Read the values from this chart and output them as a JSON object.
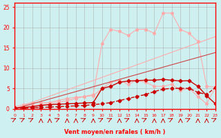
{
  "x": [
    0,
    1,
    2,
    3,
    4,
    5,
    6,
    7,
    8,
    9,
    10,
    11,
    12,
    13,
    14,
    15,
    16,
    17,
    18,
    19,
    20,
    21,
    22,
    23
  ],
  "line1": [
    0.2,
    0.3,
    0.5,
    0.8,
    1.0,
    1.1,
    1.2,
    1.3,
    1.4,
    1.5,
    5.0,
    5.5,
    6.5,
    6.8,
    6.9,
    7.0,
    7.0,
    7.2,
    7.0,
    6.8,
    6.9,
    5.5,
    3.2,
    1.2
  ],
  "line2": [
    0.1,
    0.1,
    0.2,
    0.3,
    0.4,
    0.5,
    0.6,
    0.7,
    0.8,
    1.0,
    1.2,
    1.5,
    2.0,
    2.5,
    3.0,
    3.5,
    4.2,
    4.8,
    5.0,
    5.0,
    5.0,
    4.0,
    3.5,
    5.2
  ],
  "line3_straight1": [
    0,
    0,
    0,
    0,
    0,
    0,
    0,
    0,
    0,
    0,
    0,
    0,
    0,
    0,
    0,
    0,
    0,
    0,
    0,
    0,
    0,
    0,
    0,
    0
  ],
  "line_pink1": [
    0.5,
    1.0,
    1.5,
    1.5,
    1.5,
    2.0,
    2.5,
    2.8,
    3.0,
    3.2,
    5.0,
    6.5,
    7.0,
    6.0,
    7.0,
    6.5,
    5.5,
    5.5,
    6.0,
    4.5,
    5.0,
    3.0,
    1.2,
    5.3
  ],
  "line_pink2": [
    0.2,
    0.5,
    0.8,
    1.0,
    1.2,
    1.5,
    2.0,
    2.5,
    3.0,
    3.5,
    16.0,
    19.5,
    19.0,
    18.0,
    19.5,
    19.5,
    18.5,
    23.5,
    23.5,
    19.5,
    18.5,
    16.5,
    5.5,
    5.3
  ],
  "line_linear1": [
    0,
    0.77,
    1.54,
    2.31,
    3.08,
    3.85,
    4.62,
    5.39,
    6.16,
    6.93,
    7.7,
    8.47,
    9.24,
    10.01,
    10.78,
    11.55,
    12.32,
    13.09,
    13.86,
    14.63,
    15.4,
    16.17,
    16.94,
    17.71
  ],
  "line_linear2": [
    0,
    0.6,
    1.2,
    1.8,
    2.4,
    3.0,
    3.6,
    4.2,
    4.8,
    5.4,
    6.0,
    6.6,
    7.2,
    7.8,
    8.4,
    9.0,
    9.6,
    10.2,
    10.8,
    11.4,
    12.0,
    12.6,
    13.2,
    13.8
  ],
  "arrows": [
    45,
    45,
    45,
    0,
    0,
    45,
    0,
    0,
    45,
    0,
    45,
    45,
    0,
    45,
    0,
    45,
    0,
    0,
    45,
    0,
    45,
    0,
    0,
    45
  ],
  "bg_color": "#cff0f0",
  "grid_color": "#aaaaaa",
  "axis_color": "#ff0000",
  "xlabel": "Vent moyen/en rafales ( km/h )",
  "ylim": [
    0,
    26
  ],
  "xlim": [
    0,
    23
  ]
}
